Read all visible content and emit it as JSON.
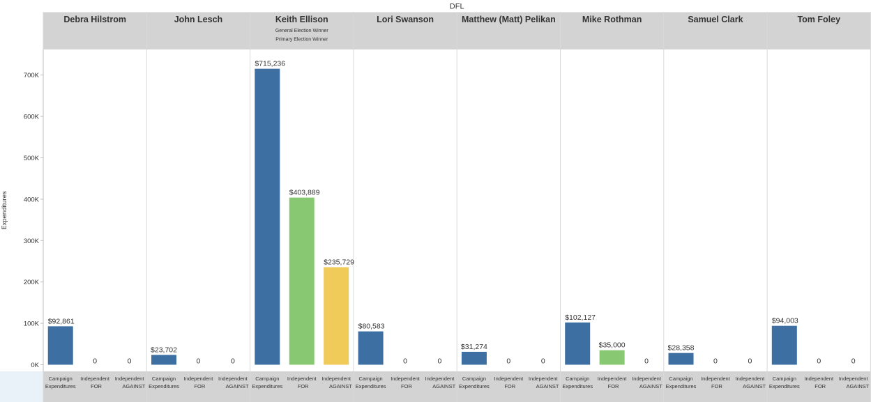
{
  "chart_data": {
    "type": "bar",
    "group_title": "DFL",
    "ylabel": "Expenditures",
    "ylim": [
      0,
      780000
    ],
    "y_ticks": [
      {
        "value": 0,
        "label": "0K"
      },
      {
        "value": 100000,
        "label": "100K"
      },
      {
        "value": 200000,
        "label": "200K"
      },
      {
        "value": 300000,
        "label": "300K"
      },
      {
        "value": 400000,
        "label": "400K"
      },
      {
        "value": 500000,
        "label": "500K"
      },
      {
        "value": 600000,
        "label": "600K"
      },
      {
        "value": 700000,
        "label": "700K"
      }
    ],
    "grid": false,
    "categories": [
      [
        "Campaign",
        "Expenditures"
      ],
      [
        "Independent",
        "FOR"
      ],
      [
        "Independent",
        "AGAINST"
      ]
    ],
    "colors": {
      "campaign": "#3d6fa3",
      "for": "#88c872",
      "against": "#f0cb5a",
      "header_bg": "#d3d3d3",
      "axis_band_bg": "#e9f2f8",
      "divider": "#d9d9d9"
    },
    "candidates": [
      {
        "name": "Debra Hilstrom",
        "notes": [],
        "values": [
          92861,
          0,
          0
        ],
        "labels": [
          "$92,861",
          "0",
          "0"
        ]
      },
      {
        "name": "John Lesch",
        "notes": [],
        "values": [
          23702,
          0,
          0
        ],
        "labels": [
          "$23,702",
          "0",
          "0"
        ]
      },
      {
        "name": "Keith Ellison",
        "notes": [
          "General Election Winner",
          "Primary Election Winner"
        ],
        "values": [
          715236,
          403889,
          235729
        ],
        "labels": [
          "$715,236",
          "$403,889",
          "$235,729"
        ]
      },
      {
        "name": "Lori Swanson",
        "notes": [],
        "values": [
          80583,
          0,
          0
        ],
        "labels": [
          "$80,583",
          "0",
          "0"
        ]
      },
      {
        "name": "Matthew (Matt) Pelikan",
        "notes": [],
        "values": [
          31274,
          0,
          0
        ],
        "labels": [
          "$31,274",
          "0",
          "0"
        ]
      },
      {
        "name": "Mike Rothman",
        "notes": [],
        "values": [
          102127,
          35000,
          0
        ],
        "labels": [
          "$102,127",
          "$35,000",
          "0"
        ]
      },
      {
        "name": "Samuel Clark",
        "notes": [],
        "values": [
          28358,
          0,
          0
        ],
        "labels": [
          "$28,358",
          "0",
          "0"
        ]
      },
      {
        "name": "Tom Foley",
        "notes": [],
        "values": [
          94003,
          0,
          0
        ],
        "labels": [
          "$94,003",
          "0",
          "0"
        ]
      }
    ]
  }
}
